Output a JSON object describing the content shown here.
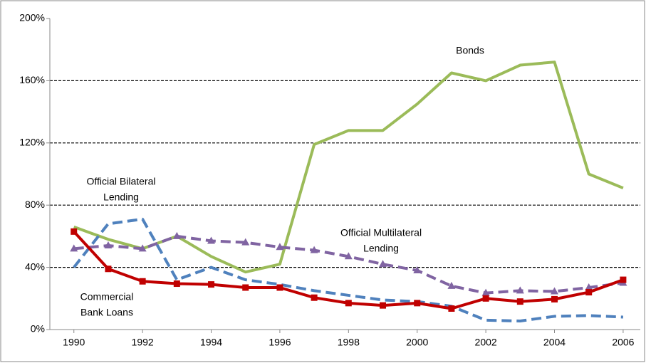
{
  "chart_data": {
    "type": "line",
    "x": [
      1990,
      1991,
      1992,
      1993,
      1994,
      1995,
      1996,
      1997,
      1998,
      1999,
      2000,
      2001,
      2002,
      2003,
      2004,
      2005,
      2006
    ],
    "xlim": [
      1989.3,
      2006.5
    ],
    "xticks": [
      1990,
      1992,
      1994,
      1996,
      1998,
      2000,
      2002,
      2004,
      2006
    ],
    "ylim": [
      0,
      200
    ],
    "yticks": [
      {
        "value": 0,
        "label": "0%"
      },
      {
        "value": 40,
        "label": "40%"
      },
      {
        "value": 80,
        "label": "80%"
      },
      {
        "value": 120,
        "label": "120%"
      },
      {
        "value": 160,
        "label": "160%"
      },
      {
        "value": 200,
        "label": "200%"
      }
    ],
    "grid": true,
    "series": [
      {
        "label_lines": [
          "Bonds"
        ],
        "color": "#9bbb59",
        "style": "solid",
        "marker": "none",
        "values": [
          66,
          58,
          52,
          60,
          47,
          37,
          42,
          119,
          128,
          128,
          145,
          165,
          160,
          170,
          172,
          100,
          91
        ]
      },
      {
        "label_lines": [
          "Official Bilateral",
          "Lending"
        ],
        "color": "#4f81bd",
        "style": "dashed",
        "marker": "none",
        "values": [
          40,
          68,
          71,
          32,
          40,
          32,
          29,
          25,
          22,
          19,
          18,
          15,
          6,
          5.5,
          8.5,
          9,
          8
        ]
      },
      {
        "label_lines": [
          "Official Multilateral",
          "Lending"
        ],
        "color": "#8064a2",
        "style": "dashed",
        "marker": "triangle",
        "values": [
          52,
          54,
          52,
          60,
          57,
          56,
          53,
          51,
          47,
          42,
          38,
          28,
          23.5,
          25,
          24.5,
          27,
          30
        ]
      },
      {
        "label_lines": [
          "Commercial",
          "Bank Loans"
        ],
        "color": "#c00000",
        "style": "solid",
        "marker": "square",
        "values": [
          63,
          39,
          31,
          29.5,
          29,
          27,
          27,
          20.5,
          17,
          15.5,
          17,
          13.5,
          20,
          18,
          19.5,
          24,
          32
        ]
      }
    ]
  }
}
